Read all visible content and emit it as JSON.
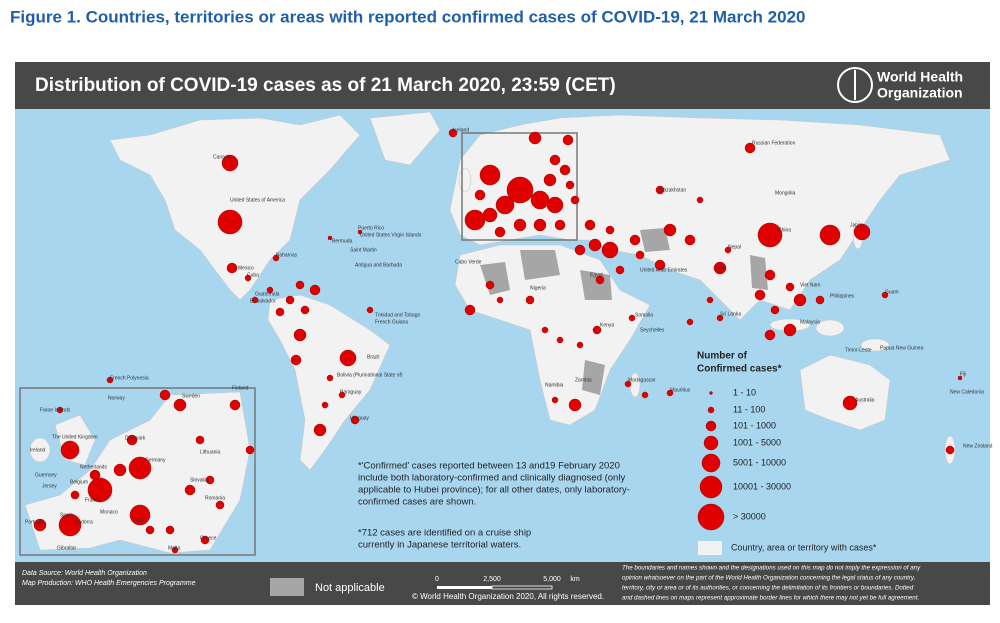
{
  "figure_title": "Figure 1. Countries, territories or areas with reported confirmed cases of COVID-19, 21 March 2020",
  "map": {
    "title": "Distribution of COVID-19  cases as of 21 March 2020, 23:59 (CET)",
    "organization": [
      "World Health",
      "Organization"
    ]
  },
  "labels": [
    "Canada",
    "United States of America",
    "Russian Federation",
    "China",
    "Brazil",
    "Australia",
    "Kazakhstan",
    "Mongolia",
    "India",
    "Philippines",
    "Bolivia (Plurinational State of)",
    "Paraguay",
    "Uruguay",
    "Mexico",
    "Iceland",
    "French Polynesia",
    "New Zealand",
    "New Caledonia",
    "Papua New Guinea",
    "Guam",
    "Sri Lanka",
    "Nepal",
    "Viet Nam",
    "Timor-Leste",
    "Fiji",
    "Mauritius",
    "Madagascar",
    "Seychelles",
    "Namibia",
    "Zambia",
    "Kenya",
    "Somalia",
    "Nigeria",
    "Cabo Verde",
    "Cuba",
    "Bahamas",
    "Bermuda",
    "Puerto Rico",
    "United States Virgin Islands",
    "Japan",
    "Malaysia",
    "Egypt",
    "United Arab Emirates",
    "Saint Martin",
    "Antigua and Barbuda",
    "Trinidad and Tobago",
    "French Guiana",
    "Guatemala",
    "El Salvador"
  ],
  "inset_labels": [
    "Faroe Islands",
    "Norway",
    "Sweden",
    "Finland",
    "The United Kingdom",
    "Ireland",
    "Denmark",
    "Netherlands",
    "Belgium",
    "Germany",
    "Guernsey",
    "Jersey",
    "France",
    "Monaco",
    "Andorra",
    "Spain",
    "Portugal",
    "Italy",
    "Gibraltar",
    "Malta",
    "Greece",
    "Lithuania",
    "Slovakia",
    "Romania"
  ],
  "legend": {
    "title": [
      "Number of",
      "Confirmed cases*"
    ],
    "items": [
      "1 - 10",
      "11 - 100",
      "101 - 1000",
      "1001 - 5000",
      "5001 - 10000",
      "10001 - 30000",
      "> 30000"
    ],
    "cases_area": "Country, area or territory with cases*",
    "not_applicable": "Not applicable"
  },
  "notes": {
    "definition": [
      "*'Confirmed' cases reported between 13 and19 February 2020",
      "include both laboratory-confirmed and clinically diagnosed (only",
      "applicable to Hubei province); for all other dates, only laboratory-",
      "confirmed cases are shown."
    ],
    "cruise_ship": [
      "*712 cases are identified on a cruise ship",
      "currently in Japanese territorial waters."
    ]
  },
  "footer": {
    "data_source": "Data Source: World Health Organization",
    "map_production": "Map Production: WHO Health Emergencies Programme",
    "scale": [
      "0",
      "2,500",
      "5,000",
      "km"
    ],
    "copyright": "© World Health Organization  2020,  All rights reserved.",
    "disclaimer": [
      "The boundaries and names shown and the designations used on this map do not imply the expression of any",
      "opinion whatsoever on the part of the World Health Organization concerning the legal status of any country,",
      "territory, city or area or of its authorities, or concerning the delimitation of its frontiers or boundaries. Dotted",
      "and dashed lines on maps represent approximate border lines for which there may not yet be full agreement."
    ]
  }
}
